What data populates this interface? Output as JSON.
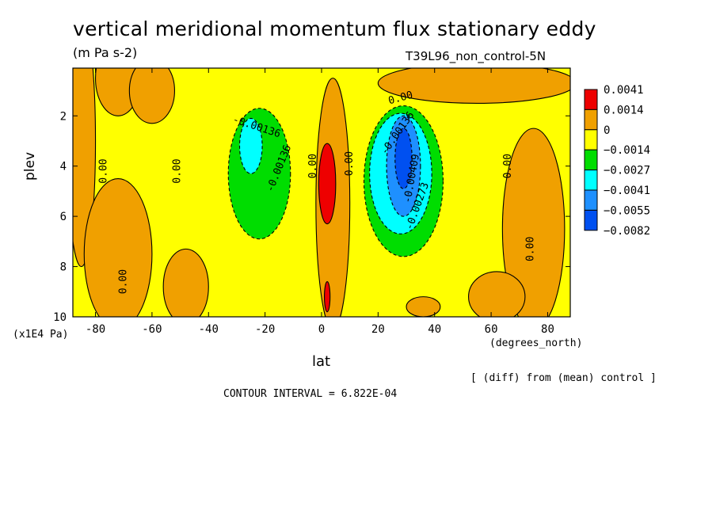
{
  "title": "vertical meridional momentum flux stationary eddy",
  "units": "(m Pa s-2)",
  "run_label": "T39L96_non_control-5N",
  "footer": {
    "diff_note": "[ (diff) from (mean) control ]",
    "contour_interval": "CONTOUR INTERVAL = 6.822E-04"
  },
  "chart_data": {
    "type": "heatmap",
    "title": "vertical meridional momentum flux stationary eddy",
    "subtitle": "(m Pa s-2)",
    "xlabel": "lat",
    "x_units": "(degrees_north)",
    "ylabel": "plev",
    "y_units": "(x1E4 Pa)",
    "xlim": [
      -88,
      88
    ],
    "ylim": [
      10,
      0.1
    ],
    "x_ticks": [
      "-80",
      "-60",
      "-40",
      "-20",
      "0",
      "20",
      "40",
      "60",
      "80"
    ],
    "x_tick_values": [
      -80,
      -60,
      -40,
      -20,
      0,
      20,
      40,
      60,
      80
    ],
    "y_ticks": [
      "2",
      "4",
      "6",
      "8",
      "10"
    ],
    "y_tick_values": [
      2,
      4,
      6,
      8,
      10
    ],
    "contour_interval": 0.0006822,
    "colorbar": {
      "colors": [
        "#ee0000",
        "#f0a000",
        "#ffff00",
        "#00dd00",
        "#00ffff",
        "#1e90ff",
        "#0050f0"
      ],
      "labels": [
        "0.0041",
        "0.0014",
        "0",
        "−0.0014",
        "−0.0027",
        "−0.0041",
        "−0.0055",
        "−0.0082"
      ]
    },
    "contour_labels": [
      {
        "text": "0.00",
        "lat": -77,
        "p": 4.2,
        "rot": -90
      },
      {
        "text": "0.00",
        "lat": -51,
        "p": 4.2,
        "rot": -90
      },
      {
        "text": "0.00",
        "lat": -70,
        "p": 8.6,
        "rot": -90
      },
      {
        "text": "-0.00136",
        "lat": -23,
        "p": 2.45,
        "rot": 18
      },
      {
        "text": "-0.00136",
        "lat": -15,
        "p": 4.1,
        "rot": -68
      },
      {
        "text": "0.00",
        "lat": -3,
        "p": 4.0,
        "rot": -90
      },
      {
        "text": "0.00",
        "lat": 10,
        "p": 3.9,
        "rot": -90
      },
      {
        "text": "0.00",
        "lat": 28,
        "p": 1.3,
        "rot": -15
      },
      {
        "text": "-0.00136",
        "lat": 27,
        "p": 2.7,
        "rot": -55
      },
      {
        "text": "-0.00409",
        "lat": 32,
        "p": 4.5,
        "rot": -80
      },
      {
        "text": "-0.00273",
        "lat": 34,
        "p": 5.6,
        "rot": -70
      },
      {
        "text": "0.00",
        "lat": 66,
        "p": 4.0,
        "rot": -90
      },
      {
        "text": "0.00",
        "lat": 74,
        "p": 7.3,
        "rot": -90
      }
    ],
    "field": [
      {
        "level": "pos_low",
        "lat": -85,
        "p": 3,
        "rx": 5,
        "rp": 5
      },
      {
        "level": "pos_low",
        "lat": -72,
        "p": 0.5,
        "rx": 8,
        "rp": 1.5
      },
      {
        "level": "pos_low",
        "lat": -60,
        "p": 1.0,
        "rx": 8,
        "rp": 1.3
      },
      {
        "level": "pos_low",
        "lat": -72,
        "p": 7.5,
        "rx": 12,
        "rp": 3
      },
      {
        "level": "pos_low",
        "lat": -48,
        "p": 8.8,
        "rx": 8,
        "rp": 1.5
      },
      {
        "level": "pos_low",
        "lat": 4,
        "p": 5.5,
        "rx": 6,
        "rp": 5
      },
      {
        "level": "pos_low",
        "lat": 55,
        "p": 0.7,
        "rx": 35,
        "rp": 0.8
      },
      {
        "level": "pos_low",
        "lat": 75,
        "p": 6.5,
        "rx": 11,
        "rp": 4
      },
      {
        "level": "pos_low",
        "lat": 62,
        "p": 9.2,
        "rx": 10,
        "rp": 1
      },
      {
        "level": "pos_low",
        "lat": 36,
        "p": 9.6,
        "rx": 6,
        "rp": 0.4
      },
      {
        "level": "neg1",
        "lat": -22,
        "p": 4.3,
        "rx": 11,
        "rp": 2.6
      },
      {
        "level": "neg1",
        "lat": 29,
        "p": 4.6,
        "rx": 14,
        "rp": 3.0
      },
      {
        "level": "neg2",
        "lat": -25,
        "p": 3.2,
        "rx": 4,
        "rp": 1.1
      },
      {
        "level": "neg2",
        "lat": 28,
        "p": 4.3,
        "rx": 11,
        "rp": 2.4
      },
      {
        "level": "neg3",
        "lat": 29,
        "p": 4.0,
        "rx": 6,
        "rp": 2.0
      },
      {
        "level": "neg4",
        "lat": 29,
        "p": 3.7,
        "rx": 3,
        "rp": 1.2
      },
      {
        "level": "pos_high",
        "lat": 2,
        "p": 4.7,
        "rx": 3,
        "rp": 1.6
      },
      {
        "level": "pos_high",
        "lat": 2,
        "p": 9.2,
        "rx": 1,
        "rp": 0.6
      }
    ]
  }
}
